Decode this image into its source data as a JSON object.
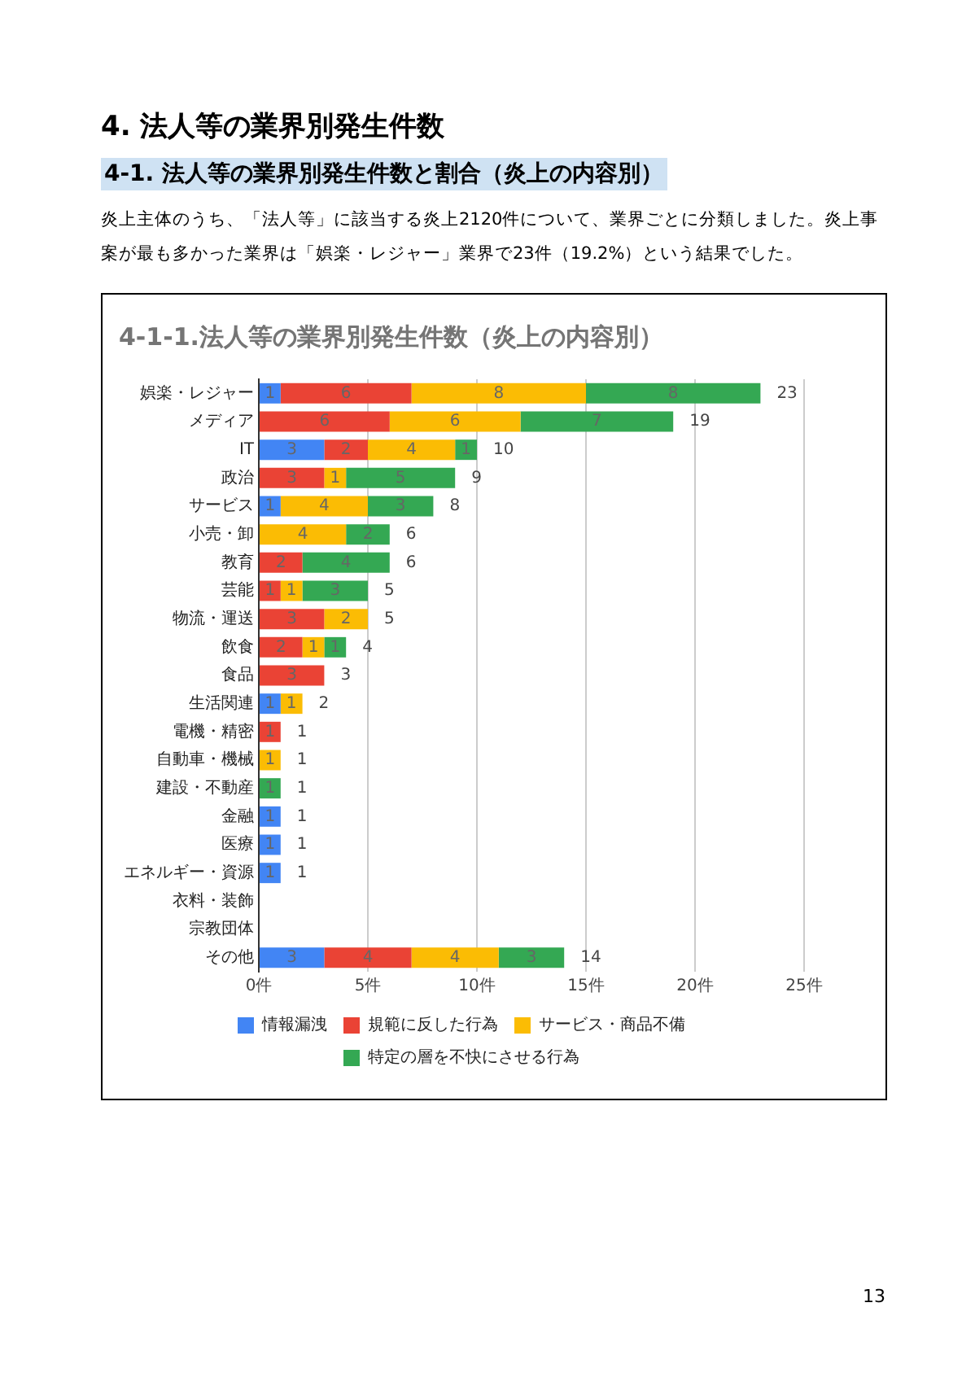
{
  "chart_data": {
    "type": "bar",
    "orientation": "horizontal",
    "stacked": true,
    "title": "4-1-1.法人等の業界別発生件数（炎上の内容別）",
    "annotations": [
      "4. 法人等の業界別発生件数",
      "4-1. 法人等の業界別発生件数と割合（炎上の内容別）",
      "炎上主体のうち、「法人等」に該当する炎上2120件について、業界ごとに分類しました。炎上事案が最も多かった業界は「娯楽・レジャー」業界で23件（19.2%）という結果でした。",
      "13"
    ],
    "categories": [
      "娯楽・レジャー",
      "メディア",
      "IT",
      "政治",
      "サービス",
      "小売・卸",
      "教育",
      "芸能",
      "物流・運送",
      "飲食",
      "食品",
      "生活関連",
      "電機・精密",
      "自動車・機械",
      "建設・不動産",
      "金融",
      "医療",
      "エネルギー・資源",
      "衣料・装飾",
      "宗教団体",
      "その他"
    ],
    "series": [
      {
        "name": "情報漏洩",
        "color": "#4285f4",
        "values": [
          1,
          null,
          3,
          null,
          1,
          null,
          null,
          null,
          null,
          null,
          null,
          1,
          null,
          null,
          null,
          1,
          1,
          1,
          null,
          null,
          3
        ]
      },
      {
        "name": "規範に反した行為",
        "color": "#ea4335",
        "values": [
          6,
          6,
          2,
          3,
          null,
          null,
          2,
          1,
          3,
          2,
          3,
          null,
          1,
          null,
          null,
          null,
          null,
          null,
          null,
          null,
          4
        ]
      },
      {
        "name": "サービス・商品不備",
        "color": "#fbbc04",
        "values": [
          8,
          6,
          4,
          1,
          4,
          4,
          null,
          1,
          2,
          1,
          null,
          1,
          null,
          1,
          null,
          null,
          null,
          null,
          null,
          null,
          4
        ]
      },
      {
        "name": "特定の層を不快にさせる行為",
        "color": "#34a853",
        "values": [
          8,
          7,
          1,
          5,
          3,
          2,
          4,
          3,
          null,
          1,
          null,
          null,
          null,
          null,
          1,
          null,
          null,
          null,
          null,
          null,
          3
        ]
      }
    ],
    "totals": [
      "23",
      "19",
      "10",
      "9",
      "8",
      "6",
      "6",
      "5",
      "5",
      "4",
      "3",
      "2",
      "1",
      "1",
      "1",
      "1",
      "1",
      "1",
      null,
      null,
      "14"
    ],
    "data_labels": true,
    "xlim": [
      0,
      25
    ],
    "xticks": [
      {
        "value": 0,
        "label": "0件"
      },
      {
        "value": 5,
        "label": "5件"
      },
      {
        "value": 10,
        "label": "10件"
      },
      {
        "value": 15,
        "label": "15件"
      },
      {
        "value": 20,
        "label": "20件"
      },
      {
        "value": 25,
        "label": "25件"
      }
    ],
    "grid": "x",
    "legend": "bottom"
  }
}
